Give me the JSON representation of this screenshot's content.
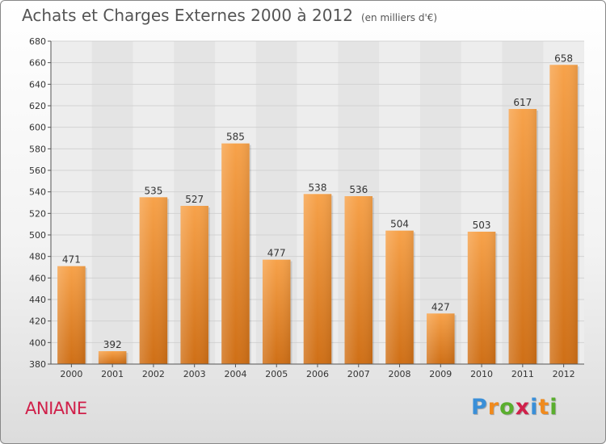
{
  "chart_data": {
    "type": "bar",
    "title": "Achats et Charges Externes 2000 à 2012",
    "subtitle": "(en milliers d'€)",
    "categories": [
      "2000",
      "2001",
      "2002",
      "2003",
      "2004",
      "2005",
      "2006",
      "2007",
      "2008",
      "2009",
      "2010",
      "2011",
      "2012"
    ],
    "values": [
      471,
      392,
      535,
      527,
      585,
      477,
      538,
      536,
      504,
      427,
      503,
      617,
      658
    ],
    "ylim": [
      380,
      680
    ],
    "yticks": [
      380,
      400,
      420,
      440,
      460,
      480,
      500,
      520,
      540,
      560,
      580,
      600,
      620,
      640,
      660,
      680
    ],
    "grid": true,
    "bar_color": "#f0922f"
  },
  "place_name": "ANIANE",
  "logo": {
    "letters": [
      "P",
      "r",
      "o",
      "x",
      "i",
      "t",
      "i"
    ],
    "colors": [
      "#3a8fd8",
      "#f08a1d",
      "#5aae2e",
      "#d0204a",
      "#3a8fd8",
      "#f08a1d",
      "#5aae2e"
    ]
  }
}
